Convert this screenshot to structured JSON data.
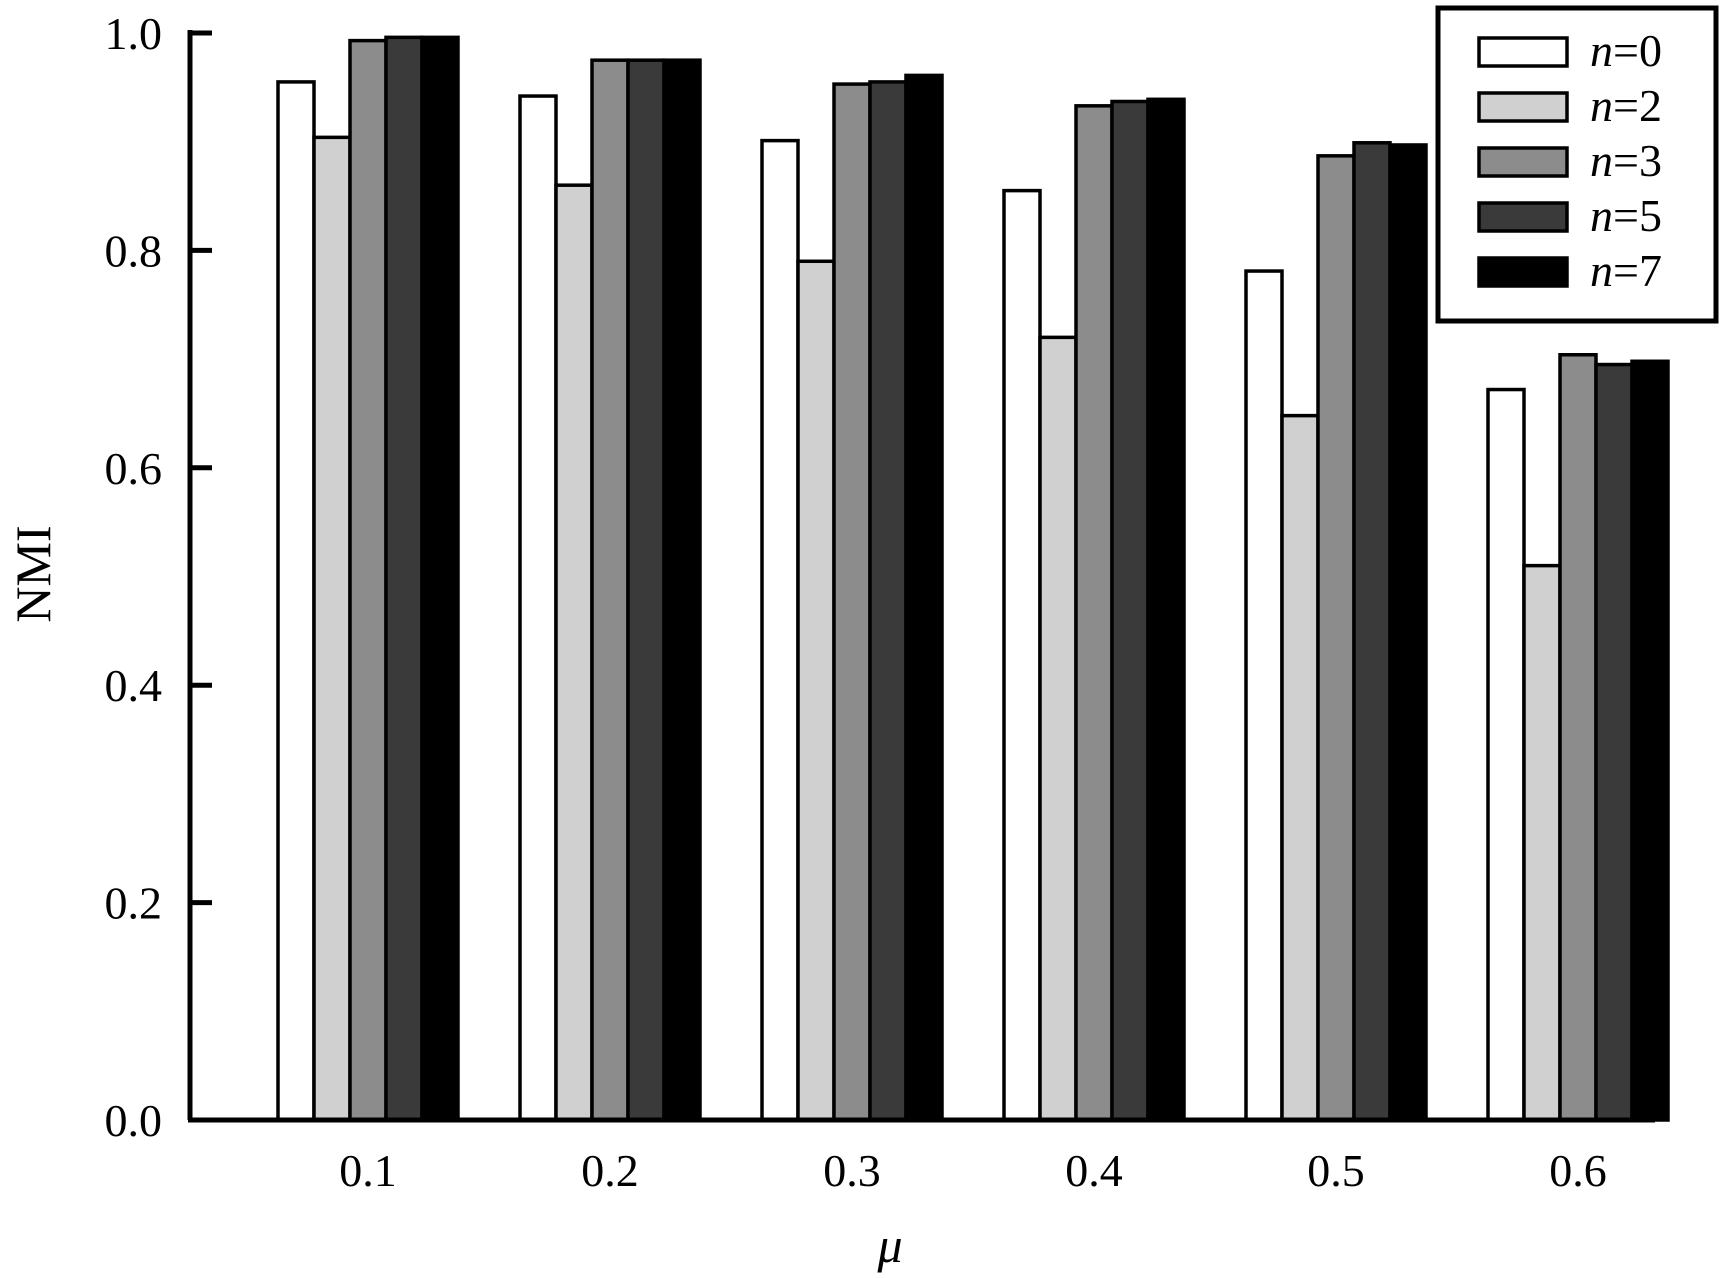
{
  "chart_data": {
    "type": "bar",
    "title": "",
    "xlabel": "μ",
    "ylabel": "NMI",
    "categories": [
      "0.1",
      "0.2",
      "0.3",
      "0.4",
      "0.5",
      "0.6"
    ],
    "yticks": [
      "0.0",
      "0.2",
      "0.4",
      "0.6",
      "0.8",
      "1.0"
    ],
    "ylim": [
      0,
      1.0
    ],
    "grid": false,
    "legend_position": "top-right",
    "series": [
      {
        "name": "n=0",
        "name_var": "n",
        "name_val": "=0",
        "color": "#ffffff",
        "values": [
          0.955,
          0.942,
          0.901,
          0.855,
          0.781,
          0.672
        ]
      },
      {
        "name": "n=2",
        "name_var": "n",
        "name_val": "=2",
        "color": "#d0d0d0",
        "values": [
          0.904,
          0.86,
          0.79,
          0.72,
          0.648,
          0.51
        ]
      },
      {
        "name": "n=3",
        "name_var": "n",
        "name_val": "=3",
        "color": "#8c8c8c",
        "values": [
          0.993,
          0.975,
          0.953,
          0.933,
          0.887,
          0.704
        ]
      },
      {
        "name": "n=5",
        "name_var": "n",
        "name_val": "=5",
        "color": "#3a3a3a",
        "values": [
          0.996,
          0.975,
          0.955,
          0.937,
          0.899,
          0.695
        ]
      },
      {
        "name": "n=7",
        "name_var": "n",
        "name_val": "=7",
        "color": "#000000",
        "values": [
          0.996,
          0.975,
          0.961,
          0.939,
          0.897,
          0.698
        ]
      }
    ]
  }
}
